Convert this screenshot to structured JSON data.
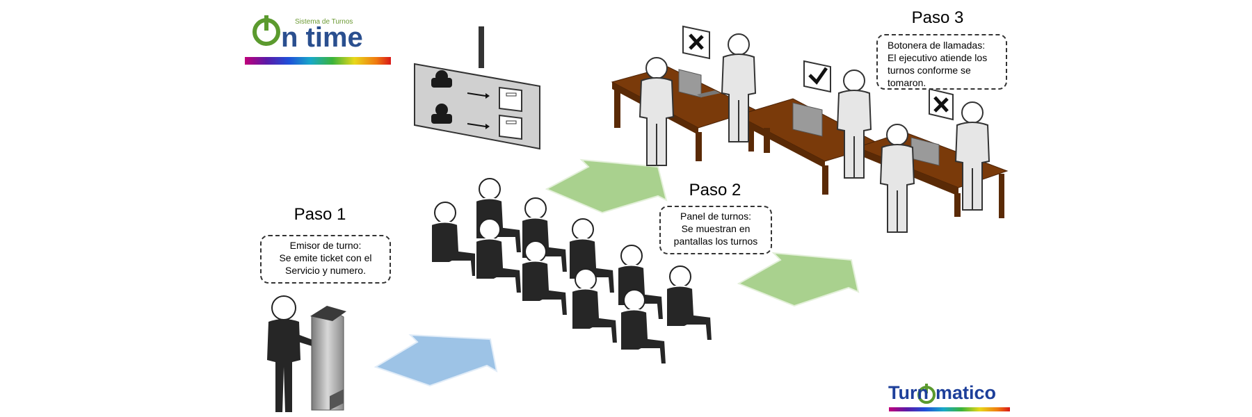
{
  "logo": {
    "subtitle": "Sistema de Turnos",
    "name": "n time",
    "accent_color": "#5b9a2e",
    "name_color": "#2a4f8f"
  },
  "steps": [
    {
      "title": "Paso 1",
      "lines": [
        "Emisor de turno:",
        "Se emite ticket con el",
        "Servicio y numero."
      ]
    },
    {
      "title": "Paso 2",
      "lines": [
        "Panel de turnos:",
        "Se muestran en",
        "pantallas los turnos"
      ]
    },
    {
      "title": "Paso 3",
      "lines": [
        "Botonera de llamadas:",
        "El ejecutivo atiende los",
        "turnos conforme se",
        "tomaron."
      ]
    }
  ],
  "arrows": [
    {
      "from": "Paso 1",
      "to": "Paso 2",
      "color": "#9dc3e6"
    },
    {
      "from": "Paso 2",
      "to": "Paso 3",
      "color": "#a9d18e"
    },
    {
      "from": "Paso 2",
      "to": "Paso 3",
      "color": "#a9d18e"
    }
  ],
  "brand": {
    "name_left": "Turn",
    "name_right": "matico",
    "color": "#1d3f9a"
  },
  "icons": [
    "person-icon",
    "kiosk-icon",
    "display-panel-icon",
    "seated-person-icon",
    "desk-icon",
    "laptop-icon",
    "check-sign-icon",
    "cross-sign-icon"
  ]
}
